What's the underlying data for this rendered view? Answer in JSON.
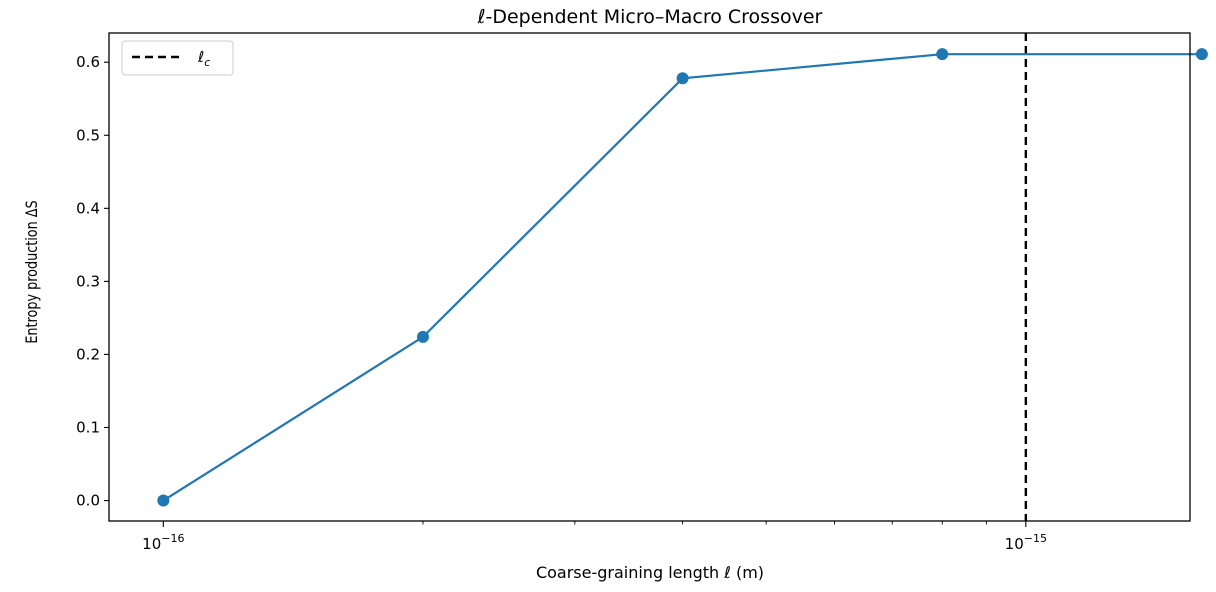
{
  "chart_data": {
    "type": "line",
    "title": "ℓ-Dependent Micro–Macro Crossover",
    "xlabel": "Coarse-graining length ℓ (m)",
    "ylabel": "Entropy production ΔS",
    "x_scale": "log",
    "xlim": [
      8.65e-17,
      1.55e-15
    ],
    "ylim": [
      -0.028,
      0.64
    ],
    "grid": false,
    "legend_position": "top-left",
    "x_major_ticks": [
      {
        "value": 1e-16,
        "base": "10",
        "exp": "−16"
      },
      {
        "value": 1e-15,
        "base": "10",
        "exp": "−15"
      }
    ],
    "x_minor_ticks": [
      2e-16,
      3e-16,
      4e-16,
      5e-16,
      6e-16,
      7e-16,
      8e-16,
      9e-16
    ],
    "y_ticks": [
      {
        "value": 0.0,
        "label": "0.0"
      },
      {
        "value": 0.1,
        "label": "0.1"
      },
      {
        "value": 0.2,
        "label": "0.2"
      },
      {
        "value": 0.3,
        "label": "0.3"
      },
      {
        "value": 0.4,
        "label": "0.4"
      },
      {
        "value": 0.5,
        "label": "0.5"
      },
      {
        "value": 0.6,
        "label": "0.6"
      }
    ],
    "series": [
      {
        "color": "#1f77b4",
        "marker": "circle",
        "x": [
          1e-16,
          2e-16,
          4e-16,
          8e-16,
          1.6e-15
        ],
        "y": [
          0.0,
          0.224,
          0.578,
          0.611,
          0.611
        ]
      }
    ],
    "vlines": [
      {
        "x": 1e-15,
        "label": "ℓ",
        "label_sub": "c",
        "color": "#000000",
        "style": "dashed"
      }
    ]
  }
}
